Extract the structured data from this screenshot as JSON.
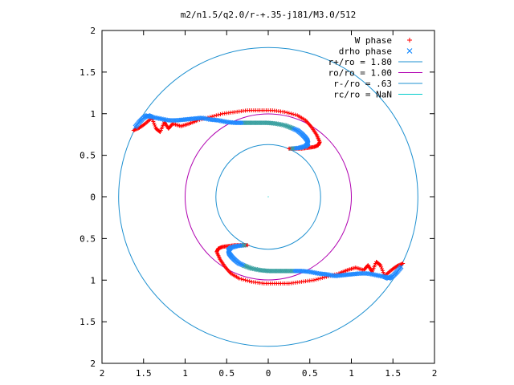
{
  "chart_data": {
    "type": "scatter",
    "title": "m2/n1.5/q2.0/r-+.35-j181/M3.0/512",
    "xlabel": "",
    "ylabel": "",
    "xlim": [
      -2,
      2
    ],
    "ylim": [
      -2,
      2
    ],
    "x_ticks": [
      -2,
      -1.5,
      -1,
      -0.5,
      0,
      0.5,
      1,
      1.5,
      2
    ],
    "y_ticks": [
      -2,
      -1.5,
      -1,
      -0.5,
      0,
      0.5,
      1,
      1.5,
      2
    ],
    "x_tick_labels": [
      "2",
      "1.5",
      "1",
      "0.5",
      "0",
      "0.5",
      "1",
      "1.5",
      "2"
    ],
    "y_tick_labels": [
      "2",
      "1.5",
      "1",
      "0.5",
      "0",
      "0.5",
      "1",
      "1.5",
      "2"
    ],
    "grid": false,
    "legend_position": "top-right",
    "series": [
      {
        "name": "W phase",
        "marker": "+",
        "color": "#ff0000"
      },
      {
        "name": "drho phase",
        "marker": "x",
        "color": "#0080ff"
      },
      {
        "name": "r+/ro = 1.80",
        "style": "circle",
        "radius": 1.8,
        "color": "#1e90d0"
      },
      {
        "name": "ro/ro = 1.00",
        "style": "circle",
        "radius": 1.0,
        "color": "#b000b0"
      },
      {
        "name": "r-/ro = .63",
        "style": "circle",
        "radius": 0.63,
        "color": "#1e90d0"
      },
      {
        "name": "rc/ro = NaN",
        "style": "line",
        "color": "#00cccc"
      }
    ],
    "w_upper_x": [
      -1.62,
      -1.55,
      -1.48,
      -1.4,
      -1.35,
      -1.3,
      -1.25,
      -1.2,
      -1.15,
      -1.05,
      -0.95,
      -0.85,
      -0.7,
      -0.55,
      -0.4,
      -0.25,
      -0.1,
      0.05,
      0.2,
      0.35,
      0.45,
      0.52,
      0.58,
      0.62,
      0.6,
      0.55,
      0.48,
      0.4,
      0.32,
      0.25
    ],
    "w_upper_y": [
      0.8,
      0.83,
      0.88,
      0.95,
      0.82,
      0.78,
      0.9,
      0.82,
      0.88,
      0.85,
      0.88,
      0.92,
      0.96,
      1.0,
      1.02,
      1.04,
      1.04,
      1.04,
      1.02,
      0.98,
      0.92,
      0.84,
      0.75,
      0.66,
      0.62,
      0.6,
      0.59,
      0.58,
      0.58,
      0.58
    ],
    "w_lower_x": [
      1.62,
      1.55,
      1.48,
      1.4,
      1.35,
      1.3,
      1.25,
      1.2,
      1.15,
      1.05,
      0.95,
      0.85,
      0.7,
      0.55,
      0.4,
      0.25,
      0.1,
      -0.05,
      -0.2,
      -0.35,
      -0.45,
      -0.52,
      -0.58,
      -0.62,
      -0.6,
      -0.55,
      -0.48,
      -0.4,
      -0.32,
      -0.25
    ],
    "w_lower_y": [
      -0.8,
      -0.83,
      -0.88,
      -0.95,
      -0.82,
      -0.78,
      -0.9,
      -0.82,
      -0.88,
      -0.85,
      -0.88,
      -0.92,
      -0.96,
      -1.0,
      -1.02,
      -1.04,
      -1.04,
      -1.04,
      -1.02,
      -0.98,
      -0.92,
      -0.84,
      -0.75,
      -0.66,
      -0.62,
      -0.6,
      -0.59,
      -0.58,
      -0.58,
      -0.58
    ],
    "d_upper_x": [
      -1.6,
      -1.55,
      -1.5,
      -1.45,
      -1.4,
      -1.3,
      -1.2,
      -1.1,
      -1.0,
      -0.9,
      -0.8,
      -0.7,
      -0.6,
      -0.5,
      -0.4,
      -0.3,
      -0.2,
      -0.1,
      0.0,
      0.1,
      0.2,
      0.28,
      0.35,
      0.4,
      0.44,
      0.47,
      0.48,
      0.45,
      0.38,
      0.28
    ],
    "d_upper_y": [
      0.84,
      0.9,
      0.95,
      0.98,
      0.96,
      0.94,
      0.92,
      0.92,
      0.93,
      0.94,
      0.95,
      0.93,
      0.92,
      0.9,
      0.89,
      0.89,
      0.89,
      0.89,
      0.89,
      0.88,
      0.86,
      0.83,
      0.8,
      0.76,
      0.72,
      0.68,
      0.64,
      0.61,
      0.59,
      0.58
    ],
    "d_lower_x": [
      1.6,
      1.55,
      1.5,
      1.45,
      1.4,
      1.3,
      1.2,
      1.1,
      1.0,
      0.9,
      0.8,
      0.7,
      0.6,
      0.5,
      0.4,
      0.3,
      0.2,
      0.1,
      0.0,
      -0.1,
      -0.2,
      -0.28,
      -0.35,
      -0.4,
      -0.44,
      -0.47,
      -0.48,
      -0.45,
      -0.38,
      -0.28
    ],
    "d_lower_y": [
      -0.84,
      -0.9,
      -0.95,
      -0.98,
      -0.96,
      -0.94,
      -0.92,
      -0.92,
      -0.93,
      -0.94,
      -0.95,
      -0.93,
      -0.92,
      -0.9,
      -0.89,
      -0.89,
      -0.89,
      -0.89,
      -0.89,
      -0.88,
      -0.86,
      -0.83,
      -0.8,
      -0.76,
      -0.72,
      -0.68,
      -0.64,
      -0.61,
      -0.59,
      -0.58
    ]
  }
}
